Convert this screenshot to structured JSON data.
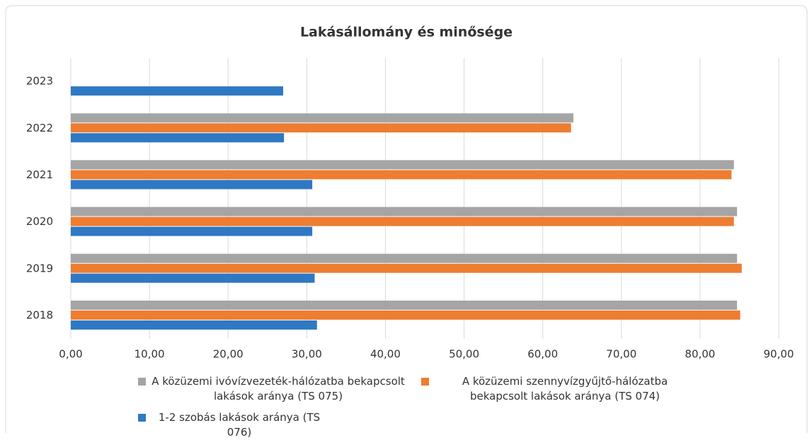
{
  "chart_data": {
    "type": "hbar",
    "title": "Lakásállomány és minősége",
    "categories": [
      "2023",
      "2022",
      "2021",
      "2020",
      "2019",
      "2018"
    ],
    "series": [
      {
        "name": "A közüzemi ivóvízvezeték-hálózatba bekapcsolt lakások aránya (TS 075)",
        "color": "#a5a5a5",
        "values": [
          null,
          63.9,
          84.3,
          84.7,
          84.7,
          84.7
        ]
      },
      {
        "name": "A közüzemi szennyvízgyűjtő-hálózatba bekapcsolt lakások aránya (TS 074)",
        "color": "#ed7d31",
        "values": [
          null,
          63.6,
          84.0,
          84.3,
          85.3,
          85.1
        ]
      },
      {
        "name": "1-2 szobás lakások aránya (TS 076)",
        "color": "#2f78c4",
        "values": [
          27.0,
          27.1,
          30.7,
          30.7,
          31.0,
          31.3
        ]
      }
    ],
    "xlim": [
      0,
      90
    ],
    "xticks": [
      {
        "value": 0,
        "label": "0,00"
      },
      {
        "value": 10,
        "label": "10,00"
      },
      {
        "value": 20,
        "label": "20,00"
      },
      {
        "value": 30,
        "label": "30,00"
      },
      {
        "value": 40,
        "label": "40,00"
      },
      {
        "value": 50,
        "label": "50,00"
      },
      {
        "value": 60,
        "label": "60,00"
      },
      {
        "value": 70,
        "label": "70,00"
      },
      {
        "value": 80,
        "label": "80,00"
      },
      {
        "value": 90,
        "label": "90,00"
      }
    ],
    "grid": true
  }
}
